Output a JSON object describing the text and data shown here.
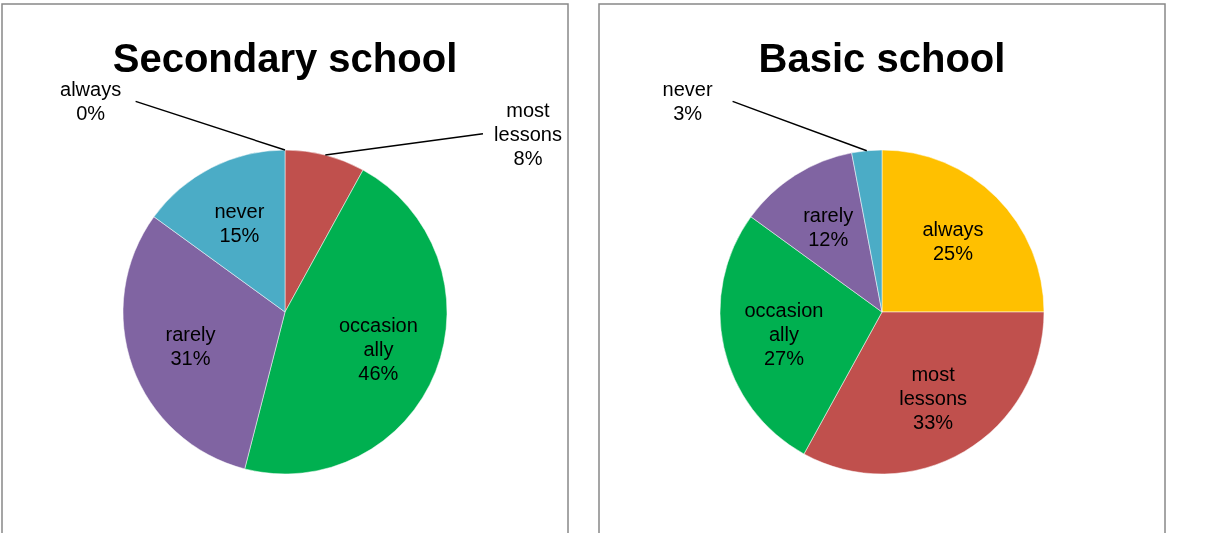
{
  "chart_data": [
    {
      "type": "pie",
      "title": "Secondary school",
      "categories": [
        "always",
        "most lessons",
        "occasionally",
        "rarely",
        "never"
      ],
      "values": [
        0,
        8,
        46,
        31,
        15
      ],
      "colors": [
        "#ffc000",
        "#c0504d",
        "#00b050",
        "#8064a2",
        "#4bacc6"
      ],
      "value_labels": [
        "0%",
        "8%",
        "46%",
        "31%",
        "15%"
      ]
    },
    {
      "type": "pie",
      "title": "Basic school",
      "categories": [
        "always",
        "most lessons",
        "occasionally",
        "rarely",
        "never"
      ],
      "values": [
        25,
        33,
        27,
        12,
        3
      ],
      "colors": [
        "#ffc000",
        "#c0504d",
        "#00b050",
        "#8064a2",
        "#4bacc6"
      ],
      "value_labels": [
        "25%",
        "33%",
        "27%",
        "12%",
        "3%"
      ]
    }
  ]
}
